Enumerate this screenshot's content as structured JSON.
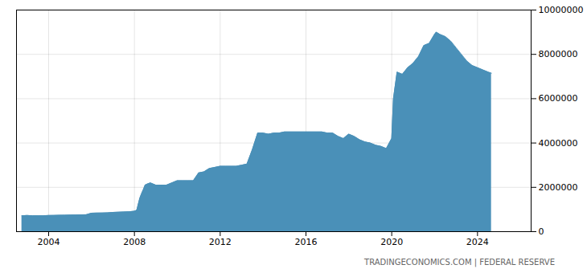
{
  "chart_data": {
    "type": "area",
    "color": "#4a90b8",
    "grid": true,
    "annotations": [
      "TRADINGECONOMICS.COM  |  FEDERAL RESERVE"
    ],
    "xlim": [
      2002.5,
      2026.5
    ],
    "xticks": [
      2004,
      2008,
      2012,
      2016,
      2020,
      2024
    ],
    "ylim": [
      0,
      10000000
    ],
    "yticks": [
      0,
      2000000,
      4000000,
      6000000,
      8000000,
      10000000
    ],
    "x": [
      2002.75,
      2003.0,
      2003.25,
      2003.5,
      2003.75,
      2004.0,
      2004.25,
      2004.5,
      2004.75,
      2005.0,
      2005.25,
      2005.5,
      2005.75,
      2006.0,
      2006.25,
      2006.5,
      2006.75,
      2007.0,
      2007.25,
      2007.5,
      2007.75,
      2008.0,
      2008.08,
      2008.12,
      2008.17,
      2008.25,
      2008.33,
      2008.42,
      2008.5,
      2008.6,
      2008.75,
      2009.0,
      2009.25,
      2009.5,
      2009.75,
      2010.0,
      2010.25,
      2010.5,
      2010.75,
      2011.0,
      2011.25,
      2011.5,
      2011.75,
      2012.0,
      2012.25,
      2012.5,
      2012.75,
      2013.0,
      2013.25,
      2013.5,
      2013.75,
      2014.0,
      2014.25,
      2014.5,
      2014.75,
      2015.0,
      2015.25,
      2015.5,
      2015.75,
      2016.0,
      2016.25,
      2016.5,
      2016.75,
      2017.0,
      2017.25,
      2017.5,
      2017.75,
      2018.0,
      2018.25,
      2018.5,
      2018.75,
      2019.0,
      2019.25,
      2019.5,
      2019.75,
      2020.0,
      2020.08,
      2020.25,
      2020.5,
      2020.75,
      2021.0,
      2021.25,
      2021.5,
      2021.75,
      2022.0,
      2022.08,
      2022.25,
      2022.5,
      2022.75,
      2023.0,
      2023.25,
      2023.5,
      2023.75,
      2024.0,
      2024.25,
      2024.5,
      2024.65
    ],
    "values": [
      720000,
      730000,
      720000,
      720000,
      720000,
      730000,
      735000,
      740000,
      745000,
      750000,
      755000,
      760000,
      765000,
      835000,
      840000,
      845000,
      850000,
      870000,
      880000,
      890000,
      900000,
      920000,
      950000,
      1000000,
      1200000,
      1500000,
      1700000,
      1900000,
      2100000,
      2150000,
      2200000,
      2100000,
      2100000,
      2100000,
      2200000,
      2300000,
      2300000,
      2300000,
      2300000,
      2650000,
      2700000,
      2850000,
      2900000,
      2950000,
      2950000,
      2950000,
      2950000,
      3000000,
      3050000,
      3700000,
      4450000,
      4450000,
      4400000,
      4450000,
      4450000,
      4500000,
      4500000,
      4500000,
      4500000,
      4500000,
      4500000,
      4500000,
      4500000,
      4450000,
      4450000,
      4300000,
      4200000,
      4400000,
      4300000,
      4150000,
      4050000,
      4000000,
      3900000,
      3850000,
      3750000,
      4200000,
      6000000,
      7200000,
      7100000,
      7400000,
      7600000,
      7900000,
      8400000,
      8500000,
      8900000,
      9000000,
      8900000,
      8800000,
      8600000,
      8300000,
      8000000,
      7700000,
      7500000,
      7400000,
      7300000,
      7200000,
      7150000
    ]
  }
}
